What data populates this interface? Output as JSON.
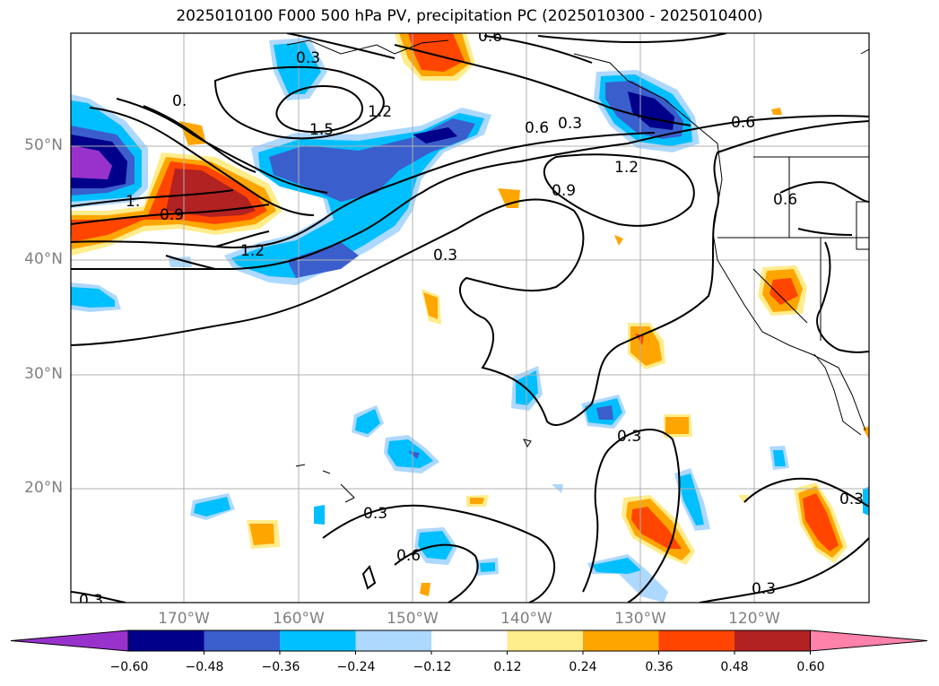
{
  "title": "2025010100 F000 500 hPa PV, precipitation PC (2025010300 - 2025010400)",
  "lat_labels": [
    "50°N",
    "40°N",
    "30°N",
    "20°N"
  ],
  "lon_labels": [
    "170°W",
    "160°W",
    "150°W",
    "140°W",
    "130°W",
    "120°W"
  ],
  "contour_labels": [
    "0.6",
    "0.3",
    "0.",
    "1.2",
    "1.5",
    "0.6",
    "0.3",
    "0.6",
    "1.2",
    "0.9",
    "0.6",
    "0.9",
    "1.",
    "1.2",
    "0.3",
    "0.3",
    "0.3",
    "0.6",
    "0.3",
    "0.3",
    "0.3"
  ],
  "colorbar": {
    "ticks": [
      "−0.60",
      "−0.48",
      "−0.36",
      "−0.24",
      "−0.12",
      "0.12",
      "0.24",
      "0.36",
      "0.48",
      "0.60"
    ],
    "colors": [
      "#9932cc",
      "#00008b",
      "#3a5fcd",
      "#00bfff",
      "#add8ff",
      "#ffffff",
      "#ffec8b",
      "#ffa500",
      "#ff4500",
      "#b22222",
      "#ff82ab"
    ]
  }
}
